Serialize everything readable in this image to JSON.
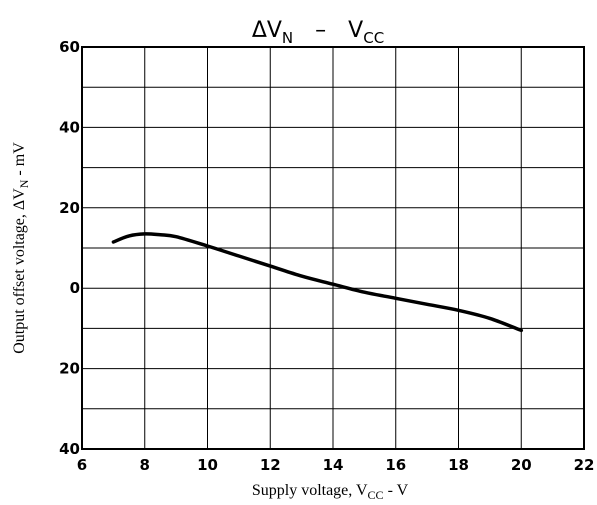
{
  "chart_data": {
    "type": "line",
    "title": {
      "prefix": "ΔV",
      "prefix_sub": "N",
      "separator": "–",
      "suffix": "V",
      "suffix_sub": "CC"
    },
    "xlabel": {
      "prefix": "Supply voltage, V",
      "sub": "CC",
      "suffix": " - V"
    },
    "ylabel": {
      "prefix": "Output offset voltage, ΔV",
      "sub": "N",
      "suffix": " - mV"
    },
    "xlim": [
      6,
      22
    ],
    "ylim": [
      -40,
      60
    ],
    "x_ticks": [
      6,
      8,
      10,
      12,
      14,
      16,
      18,
      20,
      22
    ],
    "x_tick_labels": [
      "6",
      "8",
      "10",
      "12",
      "14",
      "16",
      "18",
      "20",
      "22"
    ],
    "y_ticks": [
      60,
      40,
      20,
      0,
      -20,
      -40
    ],
    "y_tick_labels": [
      "60",
      "40",
      "20",
      "0",
      "20",
      "40"
    ],
    "grid": true,
    "grid_x_step": 2,
    "grid_y_step": 10,
    "series": [
      {
        "x": [
          7,
          7.5,
          8,
          8.5,
          9,
          10,
          11,
          12,
          13,
          14,
          15,
          16,
          17,
          18,
          19,
          20
        ],
        "y": [
          11.5,
          13,
          13.5,
          13.3,
          12.8,
          10.5,
          8,
          5.5,
          3,
          1,
          -1,
          -2.5,
          -4,
          -5.5,
          -7.5,
          -10.5
        ]
      }
    ]
  }
}
